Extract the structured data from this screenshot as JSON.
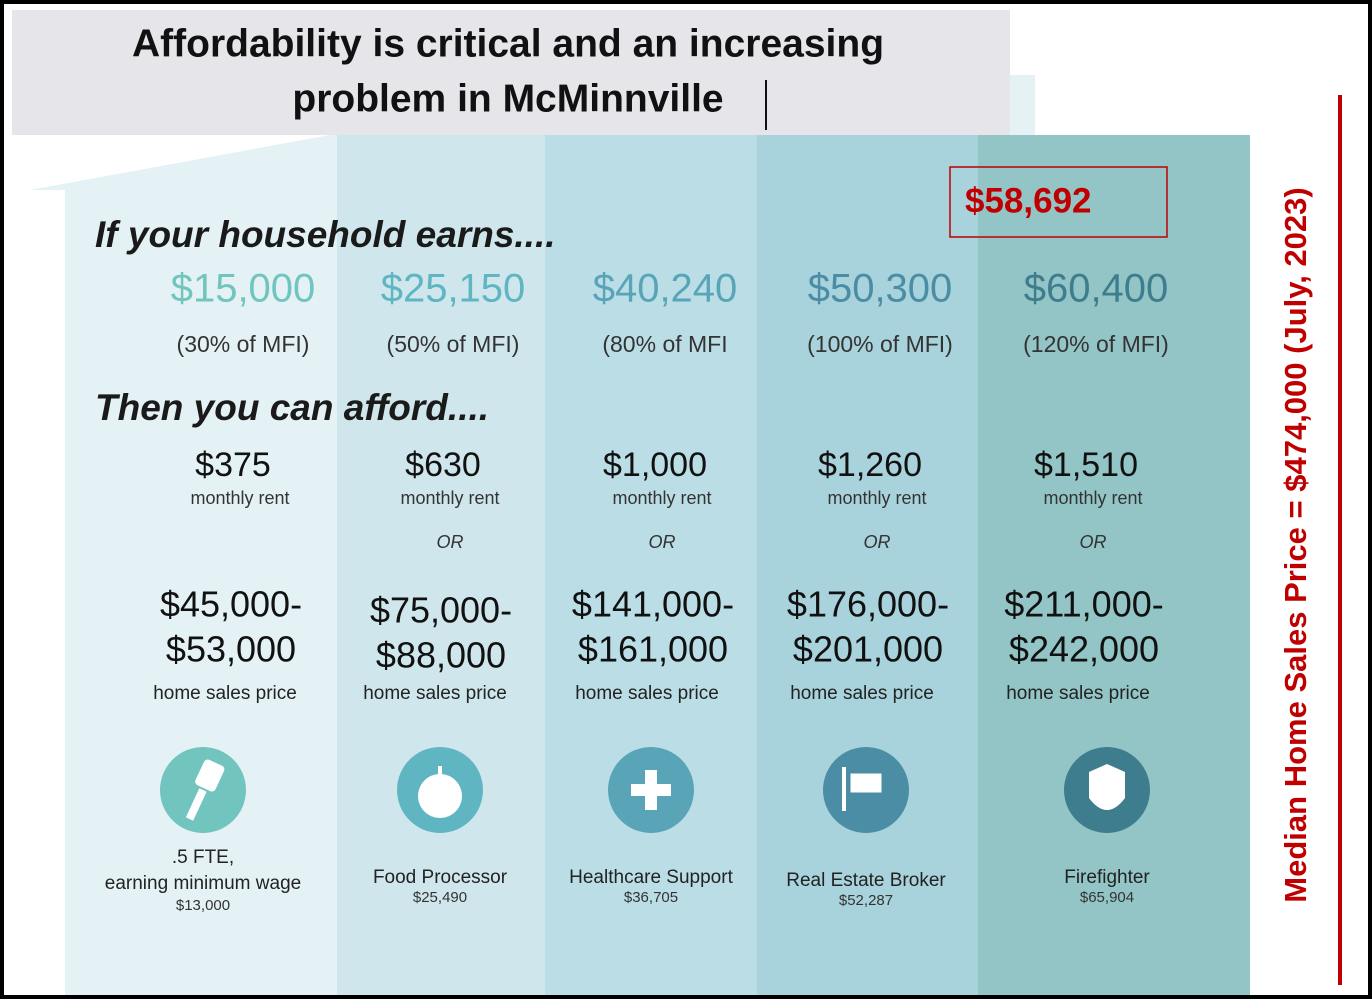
{
  "header": {
    "title_lines": [
      "Affordability is critical and an increasing",
      "problem in McMinnville"
    ]
  },
  "callout": "$58,692",
  "side_note": "Median Home Sales Price = $474,000  (July, 2023)",
  "intro_earns": "If your household earns....",
  "intro_afford": "Then you can afford....",
  "columns": [
    {
      "income": "$15,000",
      "mfi": "(30% of MFI)",
      "rent": "$375",
      "rent_label": "monthly rent",
      "price_lines": [
        "$45,000-",
        "$53,000"
      ],
      "price_label": "home sales price",
      "occupation_lines": [
        ".5 FTE,",
        "earning minimum wage"
      ],
      "salary": "$13,000"
    },
    {
      "income": "$25,150",
      "mfi": "(50% of MFI)",
      "rent": "$630",
      "rent_label": "monthly rent",
      "or": "OR",
      "price_lines": [
        "$75,000-",
        "$88,000"
      ],
      "price_label": "home sales price",
      "occupation_lines": [
        "Food Processor"
      ],
      "salary": "$25,490"
    },
    {
      "income": "$40,240",
      "mfi": "(80% of MFI",
      "rent": "$1,000",
      "rent_label": "monthly rent",
      "or": "OR",
      "price_lines": [
        "$141,000-",
        "$161,000"
      ],
      "price_label": "home sales price",
      "occupation_lines": [
        "Healthcare Support"
      ],
      "salary": "$36,705"
    },
    {
      "income": "$50,300",
      "mfi": "(100% of MFI)",
      "rent": "$1,260",
      "rent_label": "monthly rent",
      "or": "OR",
      "price_lines": [
        "$176,000-",
        "$201,000"
      ],
      "price_label": "home sales price",
      "occupation_lines": [
        "Real Estate Broker"
      ],
      "salary": "$52,287"
    },
    {
      "income": "$60,400",
      "mfi": "(120% of MFI)",
      "rent": "$1,510",
      "rent_label": "monthly rent",
      "or": "OR",
      "price_lines": [
        "$211,000-",
        "$242,000"
      ],
      "price_label": "home sales price",
      "occupation_lines": [
        "Firefighter"
      ],
      "salary": "$65,904"
    }
  ]
}
